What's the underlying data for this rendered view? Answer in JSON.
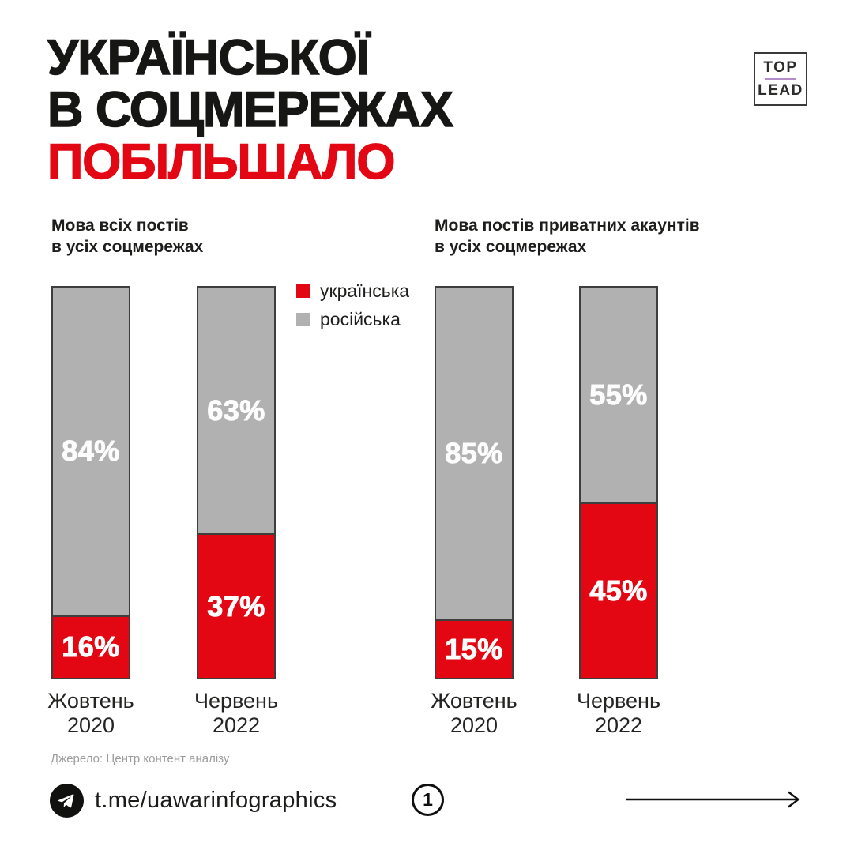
{
  "title": {
    "lines": [
      "УКРАЇНСЬКОЇ",
      "В СОЦМЕРЕЖАХ",
      "ПОБІЛЬШАЛО"
    ]
  },
  "logo": {
    "top": "TOP",
    "bottom": "LEAD"
  },
  "legend": [
    {
      "label": "українська",
      "color": "#e30613"
    },
    {
      "label": "російська",
      "color": "#b1b1b1"
    }
  ],
  "colors": {
    "accent_red": "#e30613",
    "bar_gray": "#b1b1b1",
    "bar_border": "#3e3e3d",
    "text_dark": "#161615",
    "muted_gray": "#9c9c9b",
    "logo_divider": "#b48cc8"
  },
  "chart_data": [
    {
      "type": "bar",
      "stacked": true,
      "title": "Мова всіх постів в усіх соцмережах",
      "title_lines": [
        "Мова всіх постів",
        "в усіх соцмережах"
      ],
      "categories": [
        "Жовтень 2020",
        "Червень 2022"
      ],
      "series": [
        {
          "name": "українська",
          "color": "#e30613",
          "values": [
            16,
            37
          ]
        },
        {
          "name": "російська",
          "color": "#b1b1b1",
          "values": [
            84,
            63
          ]
        }
      ],
      "unit": "%",
      "ylim": [
        0,
        100
      ],
      "legend_position": "top-right-of-bars",
      "grid": false
    },
    {
      "type": "bar",
      "stacked": true,
      "title": "Мова постів приватних акаунтів в усіх соцмережах",
      "title_lines": [
        "Мова постів приватних акаунтів",
        "в усіх соцмережах"
      ],
      "categories": [
        "Жовтень 2020",
        "Червень 2022"
      ],
      "series": [
        {
          "name": "українська",
          "color": "#e30613",
          "values": [
            15,
            45
          ]
        },
        {
          "name": "російська",
          "color": "#b1b1b1",
          "values": [
            85,
            55
          ]
        }
      ],
      "unit": "%",
      "ylim": [
        0,
        100
      ],
      "grid": false
    }
  ],
  "source": "Джерело: Центр контент аналізу",
  "footer": {
    "telegram_link": "t.me/uawarinfographics",
    "page_number": "1"
  },
  "icons": {
    "telegram": "paper-plane-in-black-circle",
    "next": "long-right-arrow"
  }
}
